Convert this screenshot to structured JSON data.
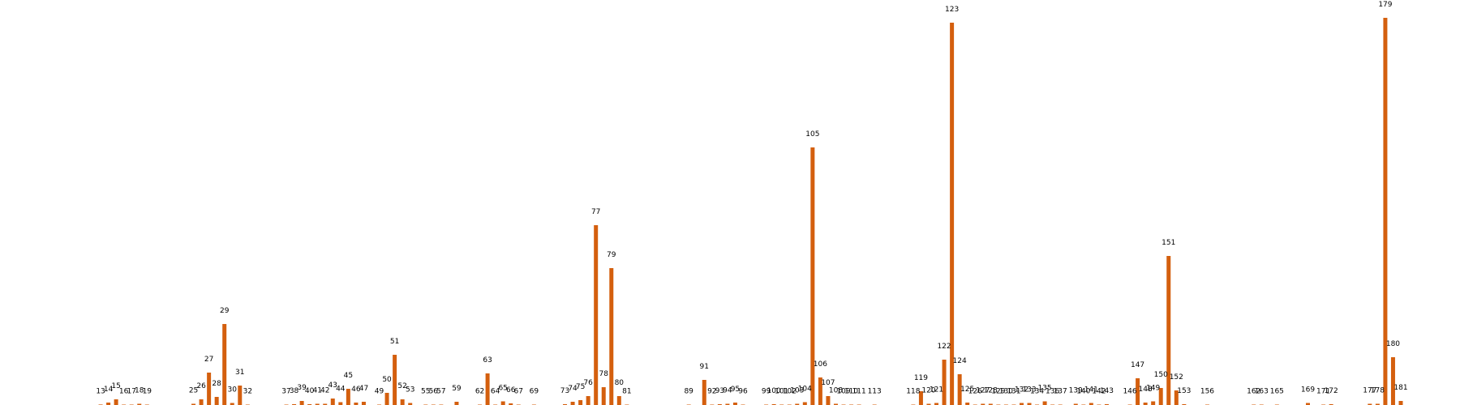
{
  "chart_data": {
    "type": "bar",
    "x_start": 0,
    "x_end": 181,
    "ylim": [
      0,
      500
    ],
    "color": "#d45f0e",
    "grid": false,
    "bars": [
      {
        "x": 13,
        "value": 0.6
      },
      {
        "x": 14,
        "value": 3
      },
      {
        "x": 15,
        "value": 7
      },
      {
        "x": 16,
        "value": 0.5
      },
      {
        "x": 17,
        "value": 0.5
      },
      {
        "x": 18,
        "value": 1.5
      },
      {
        "x": 19,
        "value": 0.5
      },
      {
        "x": 25,
        "value": 1.5
      },
      {
        "x": 26,
        "value": 7
      },
      {
        "x": 27,
        "value": 40
      },
      {
        "x": 28,
        "value": 10
      },
      {
        "x": 29,
        "value": 100
      },
      {
        "x": 30,
        "value": 2.5
      },
      {
        "x": 31,
        "value": 24
      },
      {
        "x": 32,
        "value": 0.5
      },
      {
        "x": 37,
        "value": 0.5
      },
      {
        "x": 38,
        "value": 1
      },
      {
        "x": 39,
        "value": 5
      },
      {
        "x": 40,
        "value": 1
      },
      {
        "x": 41,
        "value": 1.5
      },
      {
        "x": 42,
        "value": 1.5
      },
      {
        "x": 43,
        "value": 8
      },
      {
        "x": 44,
        "value": 3.5
      },
      {
        "x": 45,
        "value": 20
      },
      {
        "x": 46,
        "value": 3
      },
      {
        "x": 47,
        "value": 4
      },
      {
        "x": 49,
        "value": 0.5
      },
      {
        "x": 50,
        "value": 15
      },
      {
        "x": 51,
        "value": 62
      },
      {
        "x": 52,
        "value": 7
      },
      {
        "x": 53,
        "value": 2.5
      },
      {
        "x": 55,
        "value": 0.5
      },
      {
        "x": 56,
        "value": 0.5
      },
      {
        "x": 57,
        "value": 0.5
      },
      {
        "x": 59,
        "value": 4
      },
      {
        "x": 62,
        "value": 0.5
      },
      {
        "x": 63,
        "value": 39
      },
      {
        "x": 64,
        "value": 0.5
      },
      {
        "x": 65,
        "value": 4.5
      },
      {
        "x": 66,
        "value": 2
      },
      {
        "x": 67,
        "value": 0.5
      },
      {
        "x": 69,
        "value": 0.5
      },
      {
        "x": 73,
        "value": 1
      },
      {
        "x": 74,
        "value": 4
      },
      {
        "x": 75,
        "value": 6
      },
      {
        "x": 76,
        "value": 11
      },
      {
        "x": 77,
        "value": 222
      },
      {
        "x": 78,
        "value": 22
      },
      {
        "x": 79,
        "value": 169
      },
      {
        "x": 80,
        "value": 11
      },
      {
        "x": 81,
        "value": 0.5
      },
      {
        "x": 89,
        "value": 0.5
      },
      {
        "x": 91,
        "value": 31
      },
      {
        "x": 92,
        "value": 0.5
      },
      {
        "x": 93,
        "value": 1
      },
      {
        "x": 94,
        "value": 1.5
      },
      {
        "x": 95,
        "value": 3
      },
      {
        "x": 96,
        "value": 0.5
      },
      {
        "x": 99,
        "value": 0.5
      },
      {
        "x": 100,
        "value": 1
      },
      {
        "x": 101,
        "value": 0.5
      },
      {
        "x": 102,
        "value": 0.5
      },
      {
        "x": 103,
        "value": 1.5
      },
      {
        "x": 104,
        "value": 3.5
      },
      {
        "x": 105,
        "value": 318
      },
      {
        "x": 106,
        "value": 34
      },
      {
        "x": 107,
        "value": 11
      },
      {
        "x": 108,
        "value": 1.5
      },
      {
        "x": 109,
        "value": 0.5
      },
      {
        "x": 110,
        "value": 0.5
      },
      {
        "x": 111,
        "value": 0.5
      },
      {
        "x": 113,
        "value": 0.5
      },
      {
        "x": 118,
        "value": 0.5
      },
      {
        "x": 119,
        "value": 17
      },
      {
        "x": 120,
        "value": 1.5
      },
      {
        "x": 121,
        "value": 2.5
      },
      {
        "x": 122,
        "value": 56
      },
      {
        "x": 123,
        "value": 472
      },
      {
        "x": 124,
        "value": 38
      },
      {
        "x": 125,
        "value": 3
      },
      {
        "x": 126,
        "value": 0.5
      },
      {
        "x": 127,
        "value": 1.5
      },
      {
        "x": 128,
        "value": 1.5
      },
      {
        "x": 129,
        "value": 0.5
      },
      {
        "x": 130,
        "value": 0.5
      },
      {
        "x": 131,
        "value": 0.5
      },
      {
        "x": 132,
        "value": 2.5
      },
      {
        "x": 133,
        "value": 2.5
      },
      {
        "x": 134,
        "value": 0.5
      },
      {
        "x": 135,
        "value": 4.5
      },
      {
        "x": 136,
        "value": 0.5
      },
      {
        "x": 137,
        "value": 0.5
      },
      {
        "x": 139,
        "value": 1.5
      },
      {
        "x": 140,
        "value": 0.5
      },
      {
        "x": 141,
        "value": 2.5
      },
      {
        "x": 142,
        "value": 0.5
      },
      {
        "x": 143,
        "value": 1
      },
      {
        "x": 146,
        "value": 0.5
      },
      {
        "x": 147,
        "value": 33
      },
      {
        "x": 148,
        "value": 3
      },
      {
        "x": 149,
        "value": 4.5
      },
      {
        "x": 150,
        "value": 21
      },
      {
        "x": 151,
        "value": 184
      },
      {
        "x": 152,
        "value": 18
      },
      {
        "x": 153,
        "value": 1
      },
      {
        "x": 156,
        "value": 0.5
      },
      {
        "x": 162,
        "value": 0.5
      },
      {
        "x": 163,
        "value": 0.5
      },
      {
        "x": 165,
        "value": 0.5
      },
      {
        "x": 169,
        "value": 2.5
      },
      {
        "x": 171,
        "value": 0.5
      },
      {
        "x": 172,
        "value": 1
      },
      {
        "x": 177,
        "value": 1.5
      },
      {
        "x": 178,
        "value": 1.5
      },
      {
        "x": 179,
        "value": 478
      },
      {
        "x": 180,
        "value": 59
      },
      {
        "x": 181,
        "value": 5
      }
    ]
  }
}
